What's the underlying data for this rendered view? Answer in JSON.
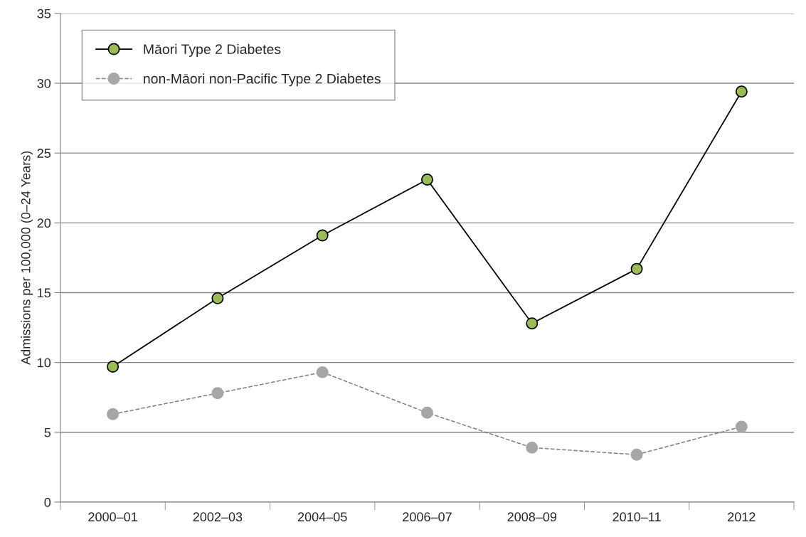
{
  "chart_data": {
    "type": "line",
    "ylabel": "Admissions per 100,000 (0–24 Years)",
    "categories": [
      "2000–01",
      "2002–03",
      "2004–05",
      "2006–07",
      "2008–09",
      "2010–11",
      "2012"
    ],
    "series": [
      {
        "name": "Māori Type 2 Diabetes",
        "color": "#9bbb59",
        "line_style": "solid",
        "values": [
          9.7,
          14.6,
          19.1,
          23.1,
          12.8,
          16.7,
          29.4
        ]
      },
      {
        "name": "non-Māori non-Pacific Type 2 Diabetes",
        "color": "#a6a6a6",
        "line_style": "dashed",
        "values": [
          6.3,
          7.8,
          9.3,
          6.4,
          3.9,
          3.4,
          5.4
        ]
      }
    ],
    "ylim": [
      0,
      35
    ],
    "yticks": [
      0,
      5,
      10,
      15,
      20,
      25,
      30,
      35
    ],
    "grid": "y",
    "legend": "top left",
    "marker": "circle"
  }
}
